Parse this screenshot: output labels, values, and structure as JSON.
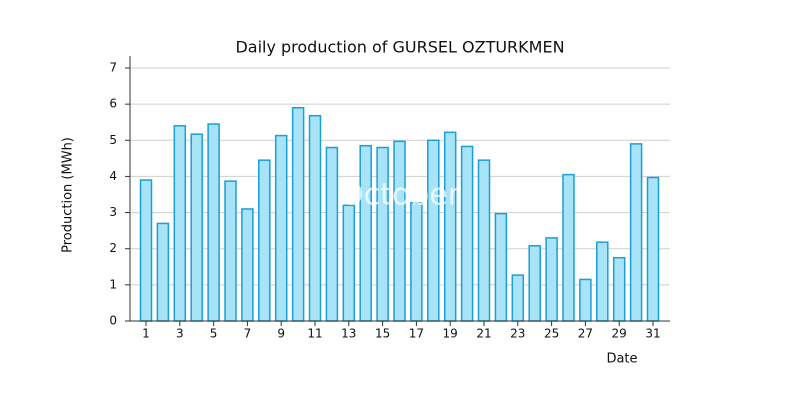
{
  "chart_data": {
    "type": "bar",
    "title": "Daily production of GURSEL OZTURKMEN",
    "x_label": "Date",
    "y_label": "Production (MWh)",
    "annotation": "October",
    "categories": [
      "1",
      null,
      "3",
      null,
      "5",
      null,
      "7",
      null,
      "9",
      null,
      "11",
      null,
      "13",
      null,
      "15",
      null,
      "17",
      null,
      "19",
      null,
      "21",
      null,
      "23",
      null,
      "25",
      null,
      "27",
      null,
      "29",
      null,
      "31"
    ],
    "values": [
      3.9,
      2.7,
      5.4,
      5.17,
      5.45,
      3.87,
      3.1,
      4.45,
      5.13,
      5.9,
      5.68,
      4.8,
      3.2,
      4.85,
      4.8,
      4.97,
      3.27,
      5.0,
      5.22,
      4.83,
      4.45,
      2.97,
      1.27,
      2.08,
      2.3,
      4.05,
      1.15,
      2.18,
      1.75,
      4.9,
      3.97
    ],
    "color": "#a8e3f7",
    "edge_color": "#1a9fd6",
    "ylim": [
      0,
      7
    ],
    "yticks": [
      0,
      1,
      2,
      3,
      4,
      5,
      6,
      7
    ],
    "grid": true
  }
}
